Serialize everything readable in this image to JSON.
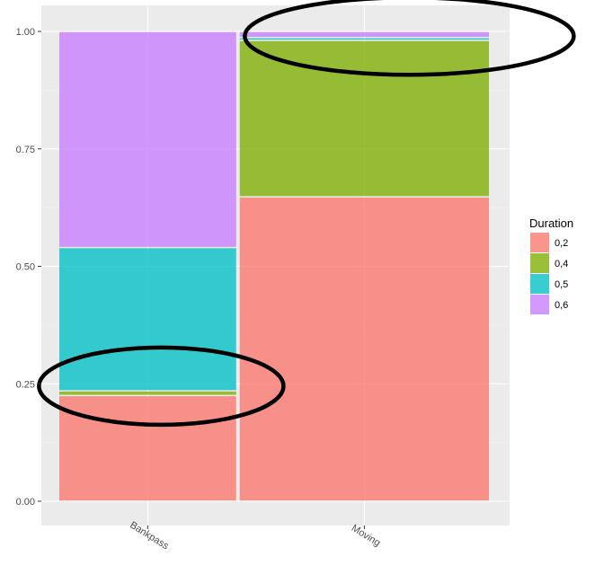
{
  "chart_data": {
    "type": "bar",
    "stacked": true,
    "mosaic": true,
    "categories": [
      "Bankpass",
      "Moving"
    ],
    "category_widths": [
      0.42,
      0.58
    ],
    "yticks": [
      "0.00",
      "0.25",
      "0.50",
      "0.75",
      "1.00"
    ],
    "ylim": [
      0,
      1
    ],
    "xlabel": "",
    "ylabel": "",
    "legend": {
      "title": "Duration",
      "placement": "right",
      "labels": [
        "0,2",
        "0,4",
        "0,5",
        "0,6"
      ]
    },
    "series": [
      {
        "name": "0,2",
        "color": "#F8766D",
        "values": [
          0.225,
          0.648
        ]
      },
      {
        "name": "0,4",
        "color": "#7CAE00",
        "values": [
          0.01,
          0.333
        ]
      },
      {
        "name": "0,5",
        "color": "#00BFC4",
        "values": [
          0.305,
          0.006
        ]
      },
      {
        "name": "0,6",
        "color": "#C77CFF",
        "values": [
          0.46,
          0.013
        ]
      }
    ],
    "panel_background": "#EBEBEB",
    "grid": true,
    "annotations": [
      {
        "shape": "ellipse",
        "category": "Bankpass",
        "y_center": 0.245
      },
      {
        "shape": "ellipse",
        "category": "Moving",
        "y_center": 0.99
      }
    ]
  }
}
